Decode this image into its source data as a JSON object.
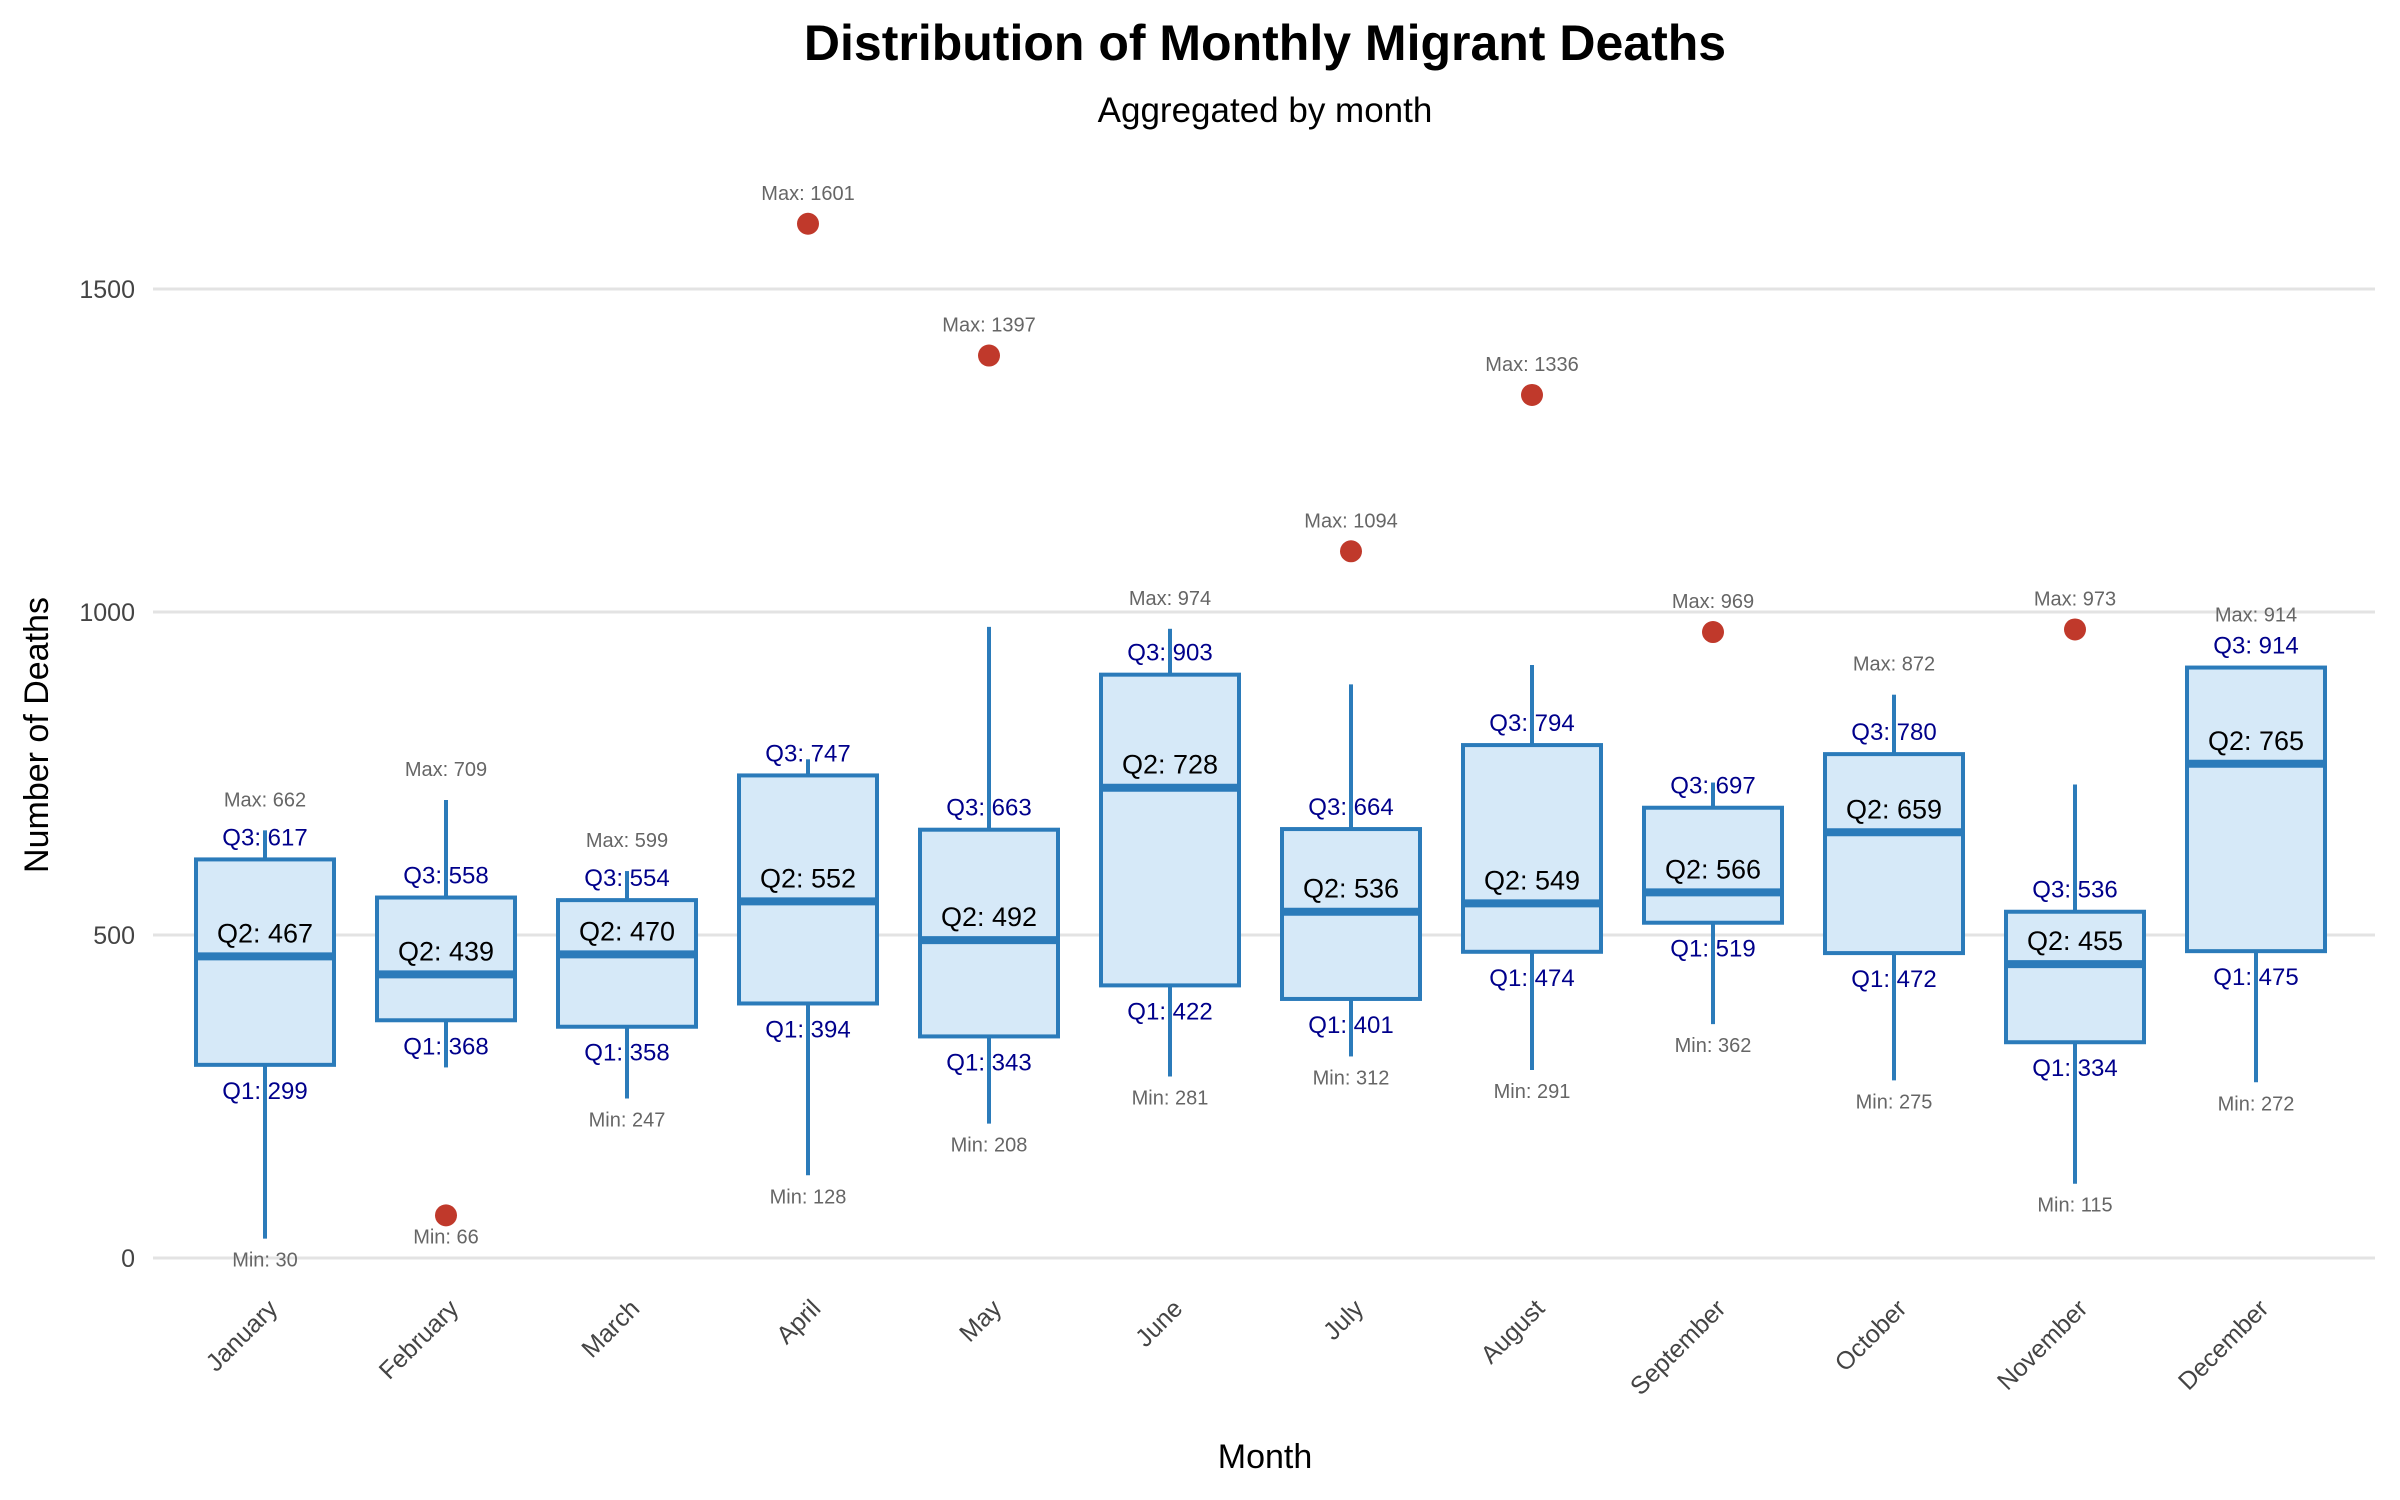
{
  "chart_data": {
    "type": "box",
    "title": "Distribution of Monthly Migrant Deaths",
    "subtitle": "Aggregated by month",
    "xlabel": "Month",
    "ylabel": "Number of Deaths",
    "ylim": [
      0,
      1650
    ],
    "yticks": [
      0,
      500,
      1000,
      1500
    ],
    "grid": true,
    "colors": {
      "box_fill": "#d6e9f8",
      "box_line": "#2b7bba",
      "outlier": "#c0392b",
      "quartile_label": "#00008b",
      "minmax_label": "#666666"
    },
    "categories": [
      "January",
      "February",
      "March",
      "April",
      "May",
      "June",
      "July",
      "August",
      "September",
      "October",
      "November",
      "December"
    ],
    "boxes": [
      {
        "month": "January",
        "min": 30,
        "q1": 299,
        "q2": 467,
        "q3": 617,
        "max": 662,
        "whisker_low": 30,
        "whisker_high": 662,
        "outliers": []
      },
      {
        "month": "February",
        "min": 66,
        "q1": 368,
        "q2": 439,
        "q3": 558,
        "max": 709,
        "whisker_low": 295,
        "whisker_high": 709,
        "outliers": [
          66
        ]
      },
      {
        "month": "March",
        "min": 247,
        "q1": 358,
        "q2": 470,
        "q3": 554,
        "max": 599,
        "whisker_low": 247,
        "whisker_high": 599,
        "outliers": []
      },
      {
        "month": "April",
        "min": 128,
        "q1": 394,
        "q2": 552,
        "q3": 747,
        "max": 1601,
        "whisker_low": 128,
        "whisker_high": 772,
        "outliers": [
          1601
        ]
      },
      {
        "month": "May",
        "min": 208,
        "q1": 343,
        "q2": 492,
        "q3": 663,
        "max": 1397,
        "whisker_low": 208,
        "whisker_high": 977,
        "outliers": [
          1397
        ]
      },
      {
        "month": "June",
        "min": 281,
        "q1": 422,
        "q2": 728,
        "q3": 903,
        "max": 974,
        "whisker_low": 281,
        "whisker_high": 974,
        "outliers": []
      },
      {
        "month": "July",
        "min": 312,
        "q1": 401,
        "q2": 536,
        "q3": 664,
        "max": 1094,
        "whisker_low": 312,
        "whisker_high": 888,
        "outliers": [
          1094
        ]
      },
      {
        "month": "August",
        "min": 291,
        "q1": 474,
        "q2": 549,
        "q3": 794,
        "max": 1336,
        "whisker_low": 291,
        "whisker_high": 918,
        "outliers": [
          1336
        ]
      },
      {
        "month": "September",
        "min": 362,
        "q1": 519,
        "q2": 566,
        "q3": 697,
        "max": 969,
        "whisker_low": 362,
        "whisker_high": 736,
        "outliers": [
          969
        ]
      },
      {
        "month": "October",
        "min": 275,
        "q1": 472,
        "q2": 659,
        "q3": 780,
        "max": 872,
        "whisker_low": 275,
        "whisker_high": 872,
        "outliers": []
      },
      {
        "month": "November",
        "min": 115,
        "q1": 334,
        "q2": 455,
        "q3": 536,
        "max": 973,
        "whisker_low": 115,
        "whisker_high": 733,
        "outliers": [
          973
        ]
      },
      {
        "month": "December",
        "min": 272,
        "q1": 475,
        "q2": 765,
        "q3": 914,
        "max": 914,
        "whisker_low": 272,
        "whisker_high": 914,
        "outliers": []
      }
    ]
  }
}
